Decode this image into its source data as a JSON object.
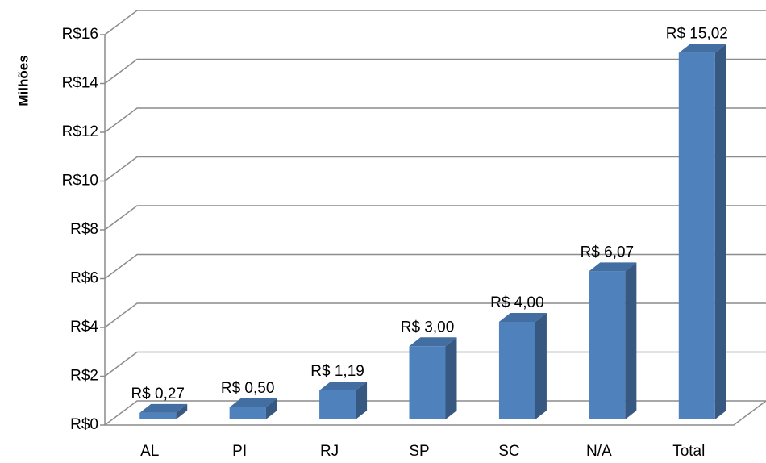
{
  "chart_data": {
    "type": "bar3d",
    "ylabel": "Milhões",
    "categories": [
      "AL",
      "PI",
      "RJ",
      "SP",
      "SC",
      "N/A",
      "Total"
    ],
    "values": [
      0.27,
      0.5,
      1.19,
      3.0,
      4.0,
      6.07,
      15.02
    ],
    "value_labels": [
      "R$ 0,27",
      "R$ 0,50",
      "R$ 1,19",
      "R$ 3,00",
      "R$ 4,00",
      "R$ 6,07",
      "R$ 15,02"
    ],
    "color": "#4f81bd",
    "ylim": [
      0,
      16
    ],
    "yticks": [
      {
        "value": 0,
        "label": "R$0"
      },
      {
        "value": 2,
        "label": "R$2"
      },
      {
        "value": 4,
        "label": "R$4"
      },
      {
        "value": 6,
        "label": "R$6"
      },
      {
        "value": 8,
        "label": "R$8"
      },
      {
        "value": 10,
        "label": "R$10"
      },
      {
        "value": 12,
        "label": "R$12"
      },
      {
        "value": 14,
        "label": "R$14"
      },
      {
        "value": 16,
        "label": "R$16"
      }
    ],
    "grid": true
  }
}
